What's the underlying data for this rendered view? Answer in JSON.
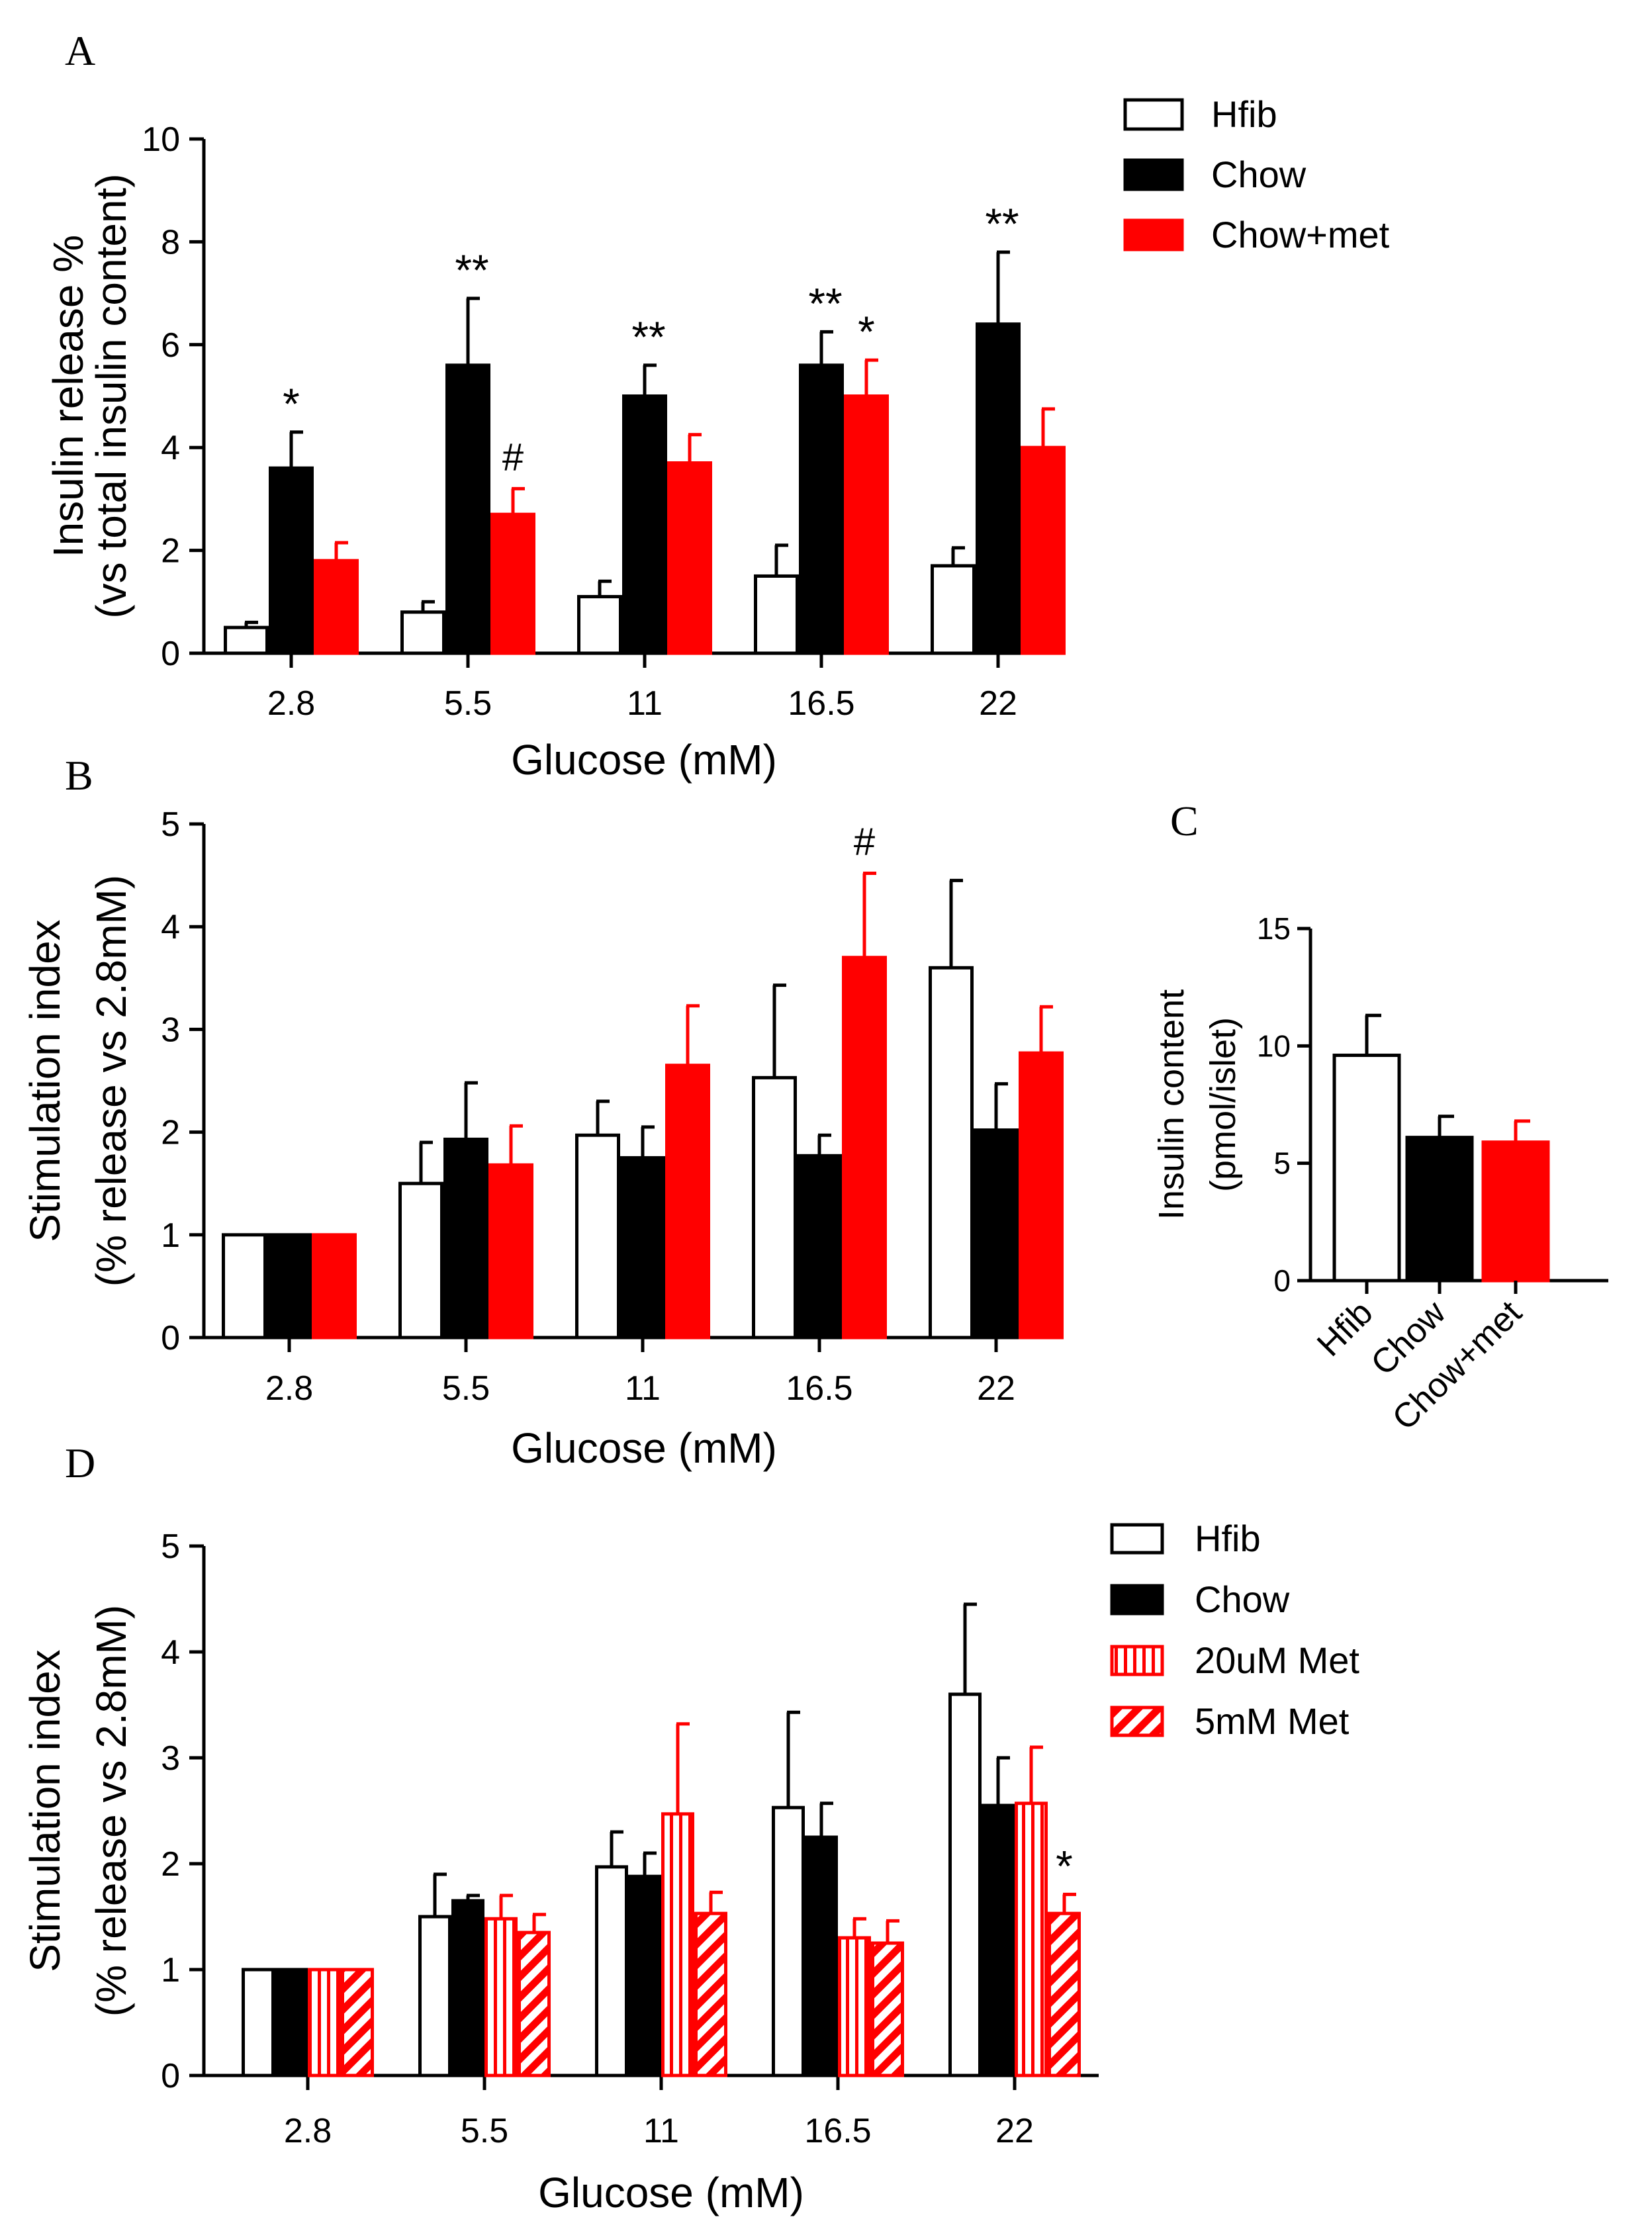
{
  "colors": {
    "black": "#000000",
    "white": "#ffffff",
    "red": "#ff0000"
  },
  "chart_data": [
    {
      "panel": "A",
      "type": "bar",
      "categories": [
        "2.8",
        "5.5",
        "11",
        "16.5",
        "22"
      ],
      "xlabel": "Glucose (mM)",
      "ylabel_lines": [
        "Insulin release %",
        "(vs total insulin content)"
      ],
      "ylim": [
        0,
        10
      ],
      "yticks": [
        "0",
        "2",
        "4",
        "6",
        "8",
        "10"
      ],
      "series": [
        {
          "name": "Hfib",
          "style": "white",
          "values": [
            0.5,
            0.8,
            1.1,
            1.5,
            1.7
          ],
          "errors": [
            0.1,
            0.2,
            0.3,
            0.6,
            0.35
          ]
        },
        {
          "name": "Chow",
          "style": "black",
          "values": [
            3.6,
            5.6,
            5.0,
            5.6,
            6.4
          ],
          "errors": [
            0.7,
            1.3,
            0.6,
            0.65,
            1.4
          ]
        },
        {
          "name": "Chow+met",
          "style": "red",
          "values": [
            1.8,
            2.7,
            3.7,
            5.0,
            4.0
          ],
          "errors": [
            0.35,
            0.5,
            0.55,
            0.7,
            0.75
          ]
        }
      ],
      "annotations": [
        {
          "text": "*",
          "cat": 0,
          "series": 1
        },
        {
          "text": "**",
          "cat": 1,
          "series": 1
        },
        {
          "text": "#",
          "cat": 1,
          "series": 2
        },
        {
          "text": "**",
          "cat": 2,
          "series": 1
        },
        {
          "text": "**",
          "cat": 3,
          "series": 1
        },
        {
          "text": "*",
          "cat": 3,
          "series": 2
        },
        {
          "text": "**",
          "cat": 4,
          "series": 1
        }
      ]
    },
    {
      "panel": "B",
      "type": "bar",
      "categories": [
        "2.8",
        "5.5",
        "11",
        "16.5",
        "22"
      ],
      "xlabel": "Glucose (mM)",
      "ylabel_lines": [
        "Stimulation index",
        "(% release vs 2.8mM)"
      ],
      "ylim": [
        0,
        5
      ],
      "yticks": [
        "0",
        "1",
        "2",
        "3",
        "4",
        "5"
      ],
      "series": [
        {
          "name": "Hfib",
          "style": "white",
          "values": [
            1.0,
            1.5,
            1.97,
            2.53,
            3.6
          ],
          "errors": [
            0,
            0.4,
            0.33,
            0.9,
            0.85
          ]
        },
        {
          "name": "Chow",
          "style": "black",
          "values": [
            1.0,
            1.93,
            1.75,
            1.77,
            2.02
          ],
          "errors": [
            0,
            0.55,
            0.3,
            0.2,
            0.45
          ]
        },
        {
          "name": "Chow+met",
          "style": "red",
          "values": [
            1.0,
            1.68,
            2.65,
            3.7,
            2.77
          ],
          "errors": [
            0,
            0.38,
            0.58,
            0.82,
            0.45
          ]
        }
      ],
      "annotations": [
        {
          "text": "#",
          "cat": 3,
          "series": 2
        }
      ]
    },
    {
      "panel": "C",
      "type": "bar",
      "categories": [
        "Hfib",
        "Chow",
        "Chow+met"
      ],
      "ylabel_lines": [
        "Insulin content",
        "(pmol/islet)"
      ],
      "ylim": [
        0,
        15
      ],
      "yticks": [
        "0",
        "5",
        "10",
        "15"
      ],
      "values": [
        9.6,
        6.1,
        5.9
      ],
      "errors": [
        1.7,
        0.9,
        0.9
      ],
      "styles": [
        "white",
        "black",
        "red"
      ]
    },
    {
      "panel": "D",
      "type": "bar",
      "categories": [
        "2.8",
        "5.5",
        "11",
        "16.5",
        "22"
      ],
      "xlabel": "Glucose (mM)",
      "ylabel_lines": [
        "Stimulation index",
        "(% release vs 2.8mM)"
      ],
      "ylim": [
        0,
        5
      ],
      "yticks": [
        "0",
        "1",
        "2",
        "3",
        "4",
        "5"
      ],
      "series": [
        {
          "name": "Hfib",
          "style": "white",
          "values": [
            1.0,
            1.5,
            1.97,
            2.53,
            3.6
          ],
          "errors": [
            0,
            0.4,
            0.33,
            0.9,
            0.85
          ]
        },
        {
          "name": "Chow",
          "style": "black",
          "values": [
            1.0,
            1.65,
            1.88,
            2.25,
            2.55
          ],
          "errors": [
            0,
            0.05,
            0.22,
            0.32,
            0.45
          ]
        },
        {
          "name": "20uM Met",
          "style": "vstripe",
          "values": [
            1.0,
            1.48,
            2.47,
            1.3,
            2.57
          ],
          "errors": [
            0,
            0.22,
            0.85,
            0.18,
            0.53
          ]
        },
        {
          "name": "5mM Met",
          "style": "diag",
          "values": [
            1.0,
            1.35,
            1.53,
            1.25,
            1.53
          ],
          "errors": [
            0,
            0.17,
            0.2,
            0.21,
            0.18
          ]
        }
      ],
      "annotations": [
        {
          "text": "*",
          "cat": 4,
          "series": 3
        }
      ]
    }
  ]
}
